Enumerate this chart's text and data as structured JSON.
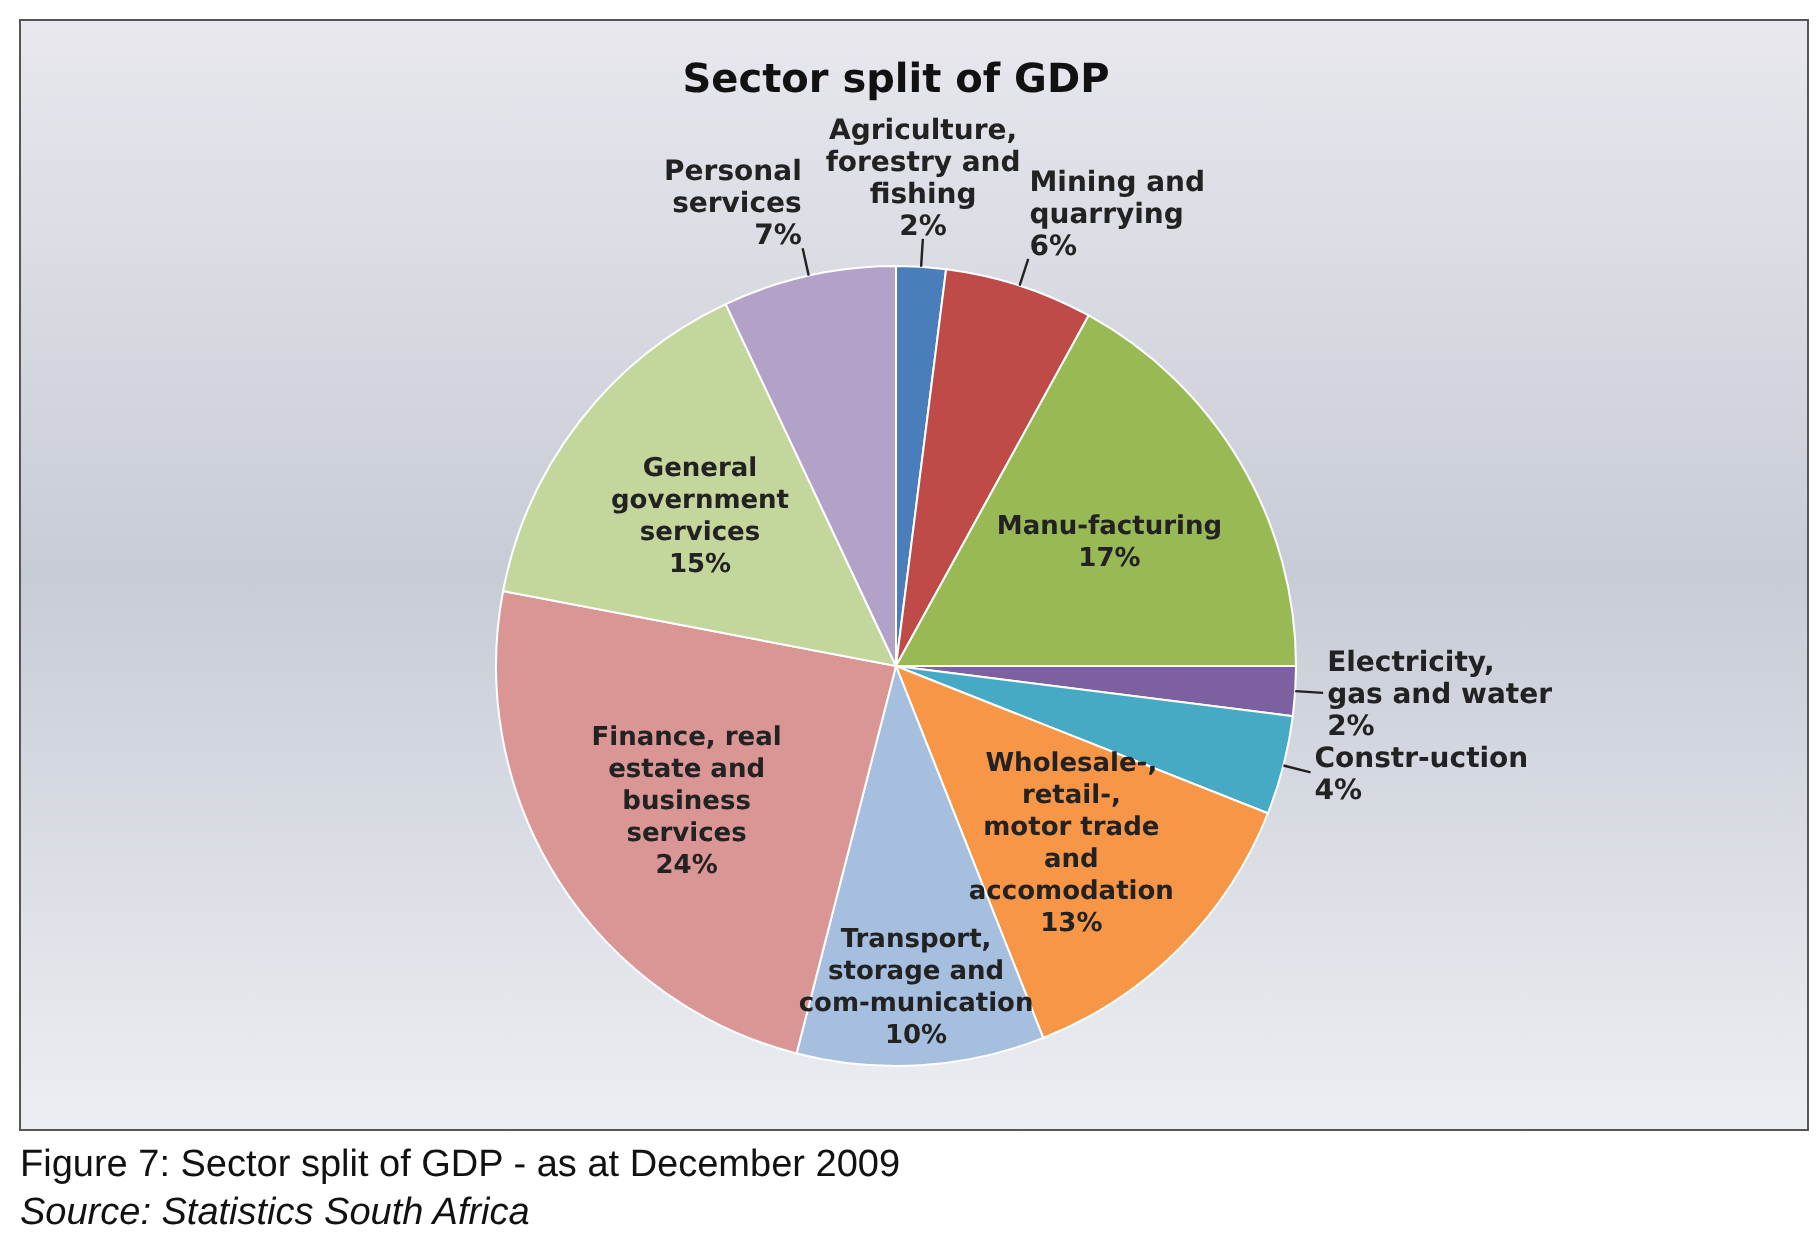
{
  "chart_data": {
    "type": "pie",
    "title": "Sector split of GDP",
    "categories": [
      "Agriculture, forestry and fishing",
      "Mining and quarrying",
      "Manu-facturing",
      "Electricity, gas and water",
      "Constr-uction",
      "Wholesale-, retail-, motor trade and accomodation",
      "Transport, storage and com-munication",
      "Finance, real estate and business services",
      "General government services",
      "Personal services"
    ],
    "values": [
      2,
      6,
      17,
      2,
      4,
      13,
      10,
      24,
      15,
      7
    ],
    "value_labels": [
      "2%",
      "6%",
      "17%",
      "2%",
      "4%",
      "13%",
      "10%",
      "24%",
      "15%",
      "7%"
    ],
    "colors": [
      "#4a7ebb",
      "#be4b48",
      "#98b954",
      "#7d60a0",
      "#46aac5",
      "#f79646",
      "#a7bfde",
      "#d99694",
      "#c3d69b",
      "#b3a2c7"
    ],
    "annotations": [
      "Figure 7: Sector split of GDP - as at December 2009",
      "Source: Statistics South Africa"
    ]
  }
}
